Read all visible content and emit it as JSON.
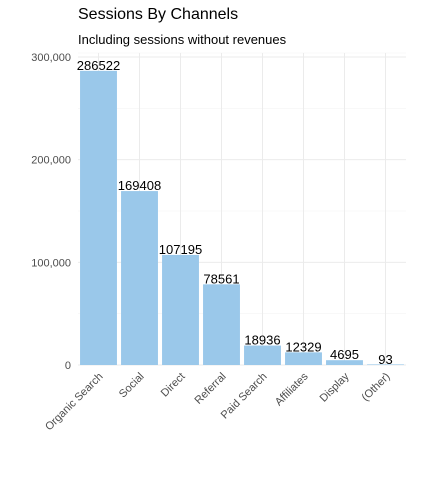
{
  "chart_data": {
    "type": "bar",
    "title": "Sessions By Channels",
    "subtitle": "Including sessions without revenues",
    "xlabel": "",
    "ylabel": "",
    "categories": [
      "Organic Search",
      "Social",
      "Direct",
      "Referral",
      "Paid Search",
      "Affiliates",
      "Display",
      "(Other)"
    ],
    "values": [
      286522,
      169408,
      107195,
      78561,
      18936,
      12329,
      4695,
      93
    ],
    "data_labels": [
      "286522",
      "169408",
      "107195",
      "78561",
      "18936",
      "12329",
      "4695",
      "93"
    ],
    "y_ticks": [
      0,
      100000,
      200000,
      300000
    ],
    "y_tick_labels": [
      "0",
      "100,000",
      "200,000",
      "300,000"
    ],
    "ylim": [
      0,
      300000
    ],
    "grid": true,
    "legend": "none",
    "bar_color": "#9ac8ea",
    "x_tick_rotation": "45 degrees"
  }
}
